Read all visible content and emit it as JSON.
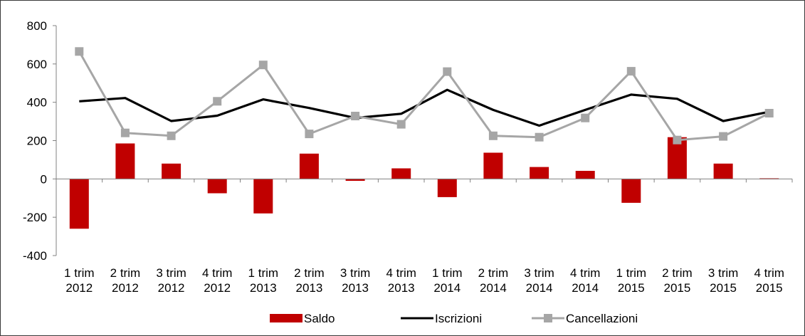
{
  "chart_data": {
    "type": "bar",
    "title": "",
    "xlabel": "",
    "ylabel": "",
    "ylim": [
      -400,
      800
    ],
    "yticks": [
      800,
      600,
      400,
      200,
      0,
      -200,
      -400
    ],
    "grid": false,
    "legend": "bottom",
    "categories": [
      [
        "1 trim",
        "2012"
      ],
      [
        "2 trim",
        "2012"
      ],
      [
        "3 trim",
        "2012"
      ],
      [
        "4 trim",
        "2012"
      ],
      [
        "1 trim",
        "2013"
      ],
      [
        "2 trim",
        "2013"
      ],
      [
        "3 trim",
        "2013"
      ],
      [
        "4 trim",
        "2013"
      ],
      [
        "1 trim",
        "2014"
      ],
      [
        "2 trim",
        "2014"
      ],
      [
        "3 trim",
        "2014"
      ],
      [
        "4 trim",
        "2014"
      ],
      [
        "1 trim",
        "2015"
      ],
      [
        "2 trim",
        "2015"
      ],
      [
        "3 trim",
        "2015"
      ],
      [
        "4 trim",
        "2015"
      ]
    ],
    "series": [
      {
        "name": "Saldo",
        "kind": "bar",
        "color": "#c00000",
        "values": [
          -260,
          185,
          80,
          -75,
          -180,
          132,
          -10,
          55,
          -95,
          137,
          62,
          42,
          -125,
          218,
          80,
          3
        ]
      },
      {
        "name": "Iscrizioni",
        "kind": "line",
        "color": "#000000",
        "values": [
          405,
          422,
          302,
          330,
          415,
          370,
          318,
          340,
          465,
          360,
          278,
          360,
          440,
          418,
          302,
          350
        ]
      },
      {
        "name": "Cancellazioni",
        "kind": "line-marker",
        "marker": "square",
        "color": "#a6a6a6",
        "values": [
          665,
          240,
          225,
          405,
          595,
          235,
          328,
          285,
          560,
          225,
          218,
          318,
          562,
          203,
          222,
          343
        ]
      }
    ]
  }
}
